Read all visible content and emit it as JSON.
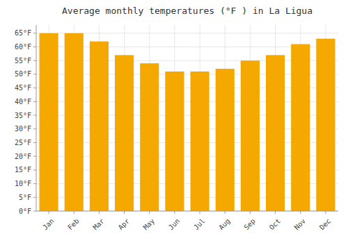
{
  "chart_data": {
    "type": "bar",
    "title": "Average monthly temperatures (°F ) in La Ligua",
    "categories": [
      "Jan",
      "Feb",
      "Mar",
      "Apr",
      "May",
      "Jun",
      "Jul",
      "Aug",
      "Sep",
      "Oct",
      "Nov",
      "Dec"
    ],
    "values": [
      65,
      65,
      62,
      57,
      54,
      51,
      51,
      52,
      55,
      57,
      61,
      63
    ],
    "color": "#F5A800",
    "ylim": [
      0,
      68
    ],
    "yticks": [
      {
        "value": 0,
        "label": "0°F"
      },
      {
        "value": 5,
        "label": "5°F"
      },
      {
        "value": 10,
        "label": "10°F"
      },
      {
        "value": 15,
        "label": "15°F"
      },
      {
        "value": 20,
        "label": "20°F"
      },
      {
        "value": 25,
        "label": "25°F"
      },
      {
        "value": 30,
        "label": "30°F"
      },
      {
        "value": 35,
        "label": "35°F"
      },
      {
        "value": 40,
        "label": "40°F"
      },
      {
        "value": 45,
        "label": "45°F"
      },
      {
        "value": 50,
        "label": "50°F"
      },
      {
        "value": 55,
        "label": "55°F"
      },
      {
        "value": 60,
        "label": "60°F"
      },
      {
        "value": 65,
        "label": "65°F"
      }
    ],
    "grid": true
  }
}
